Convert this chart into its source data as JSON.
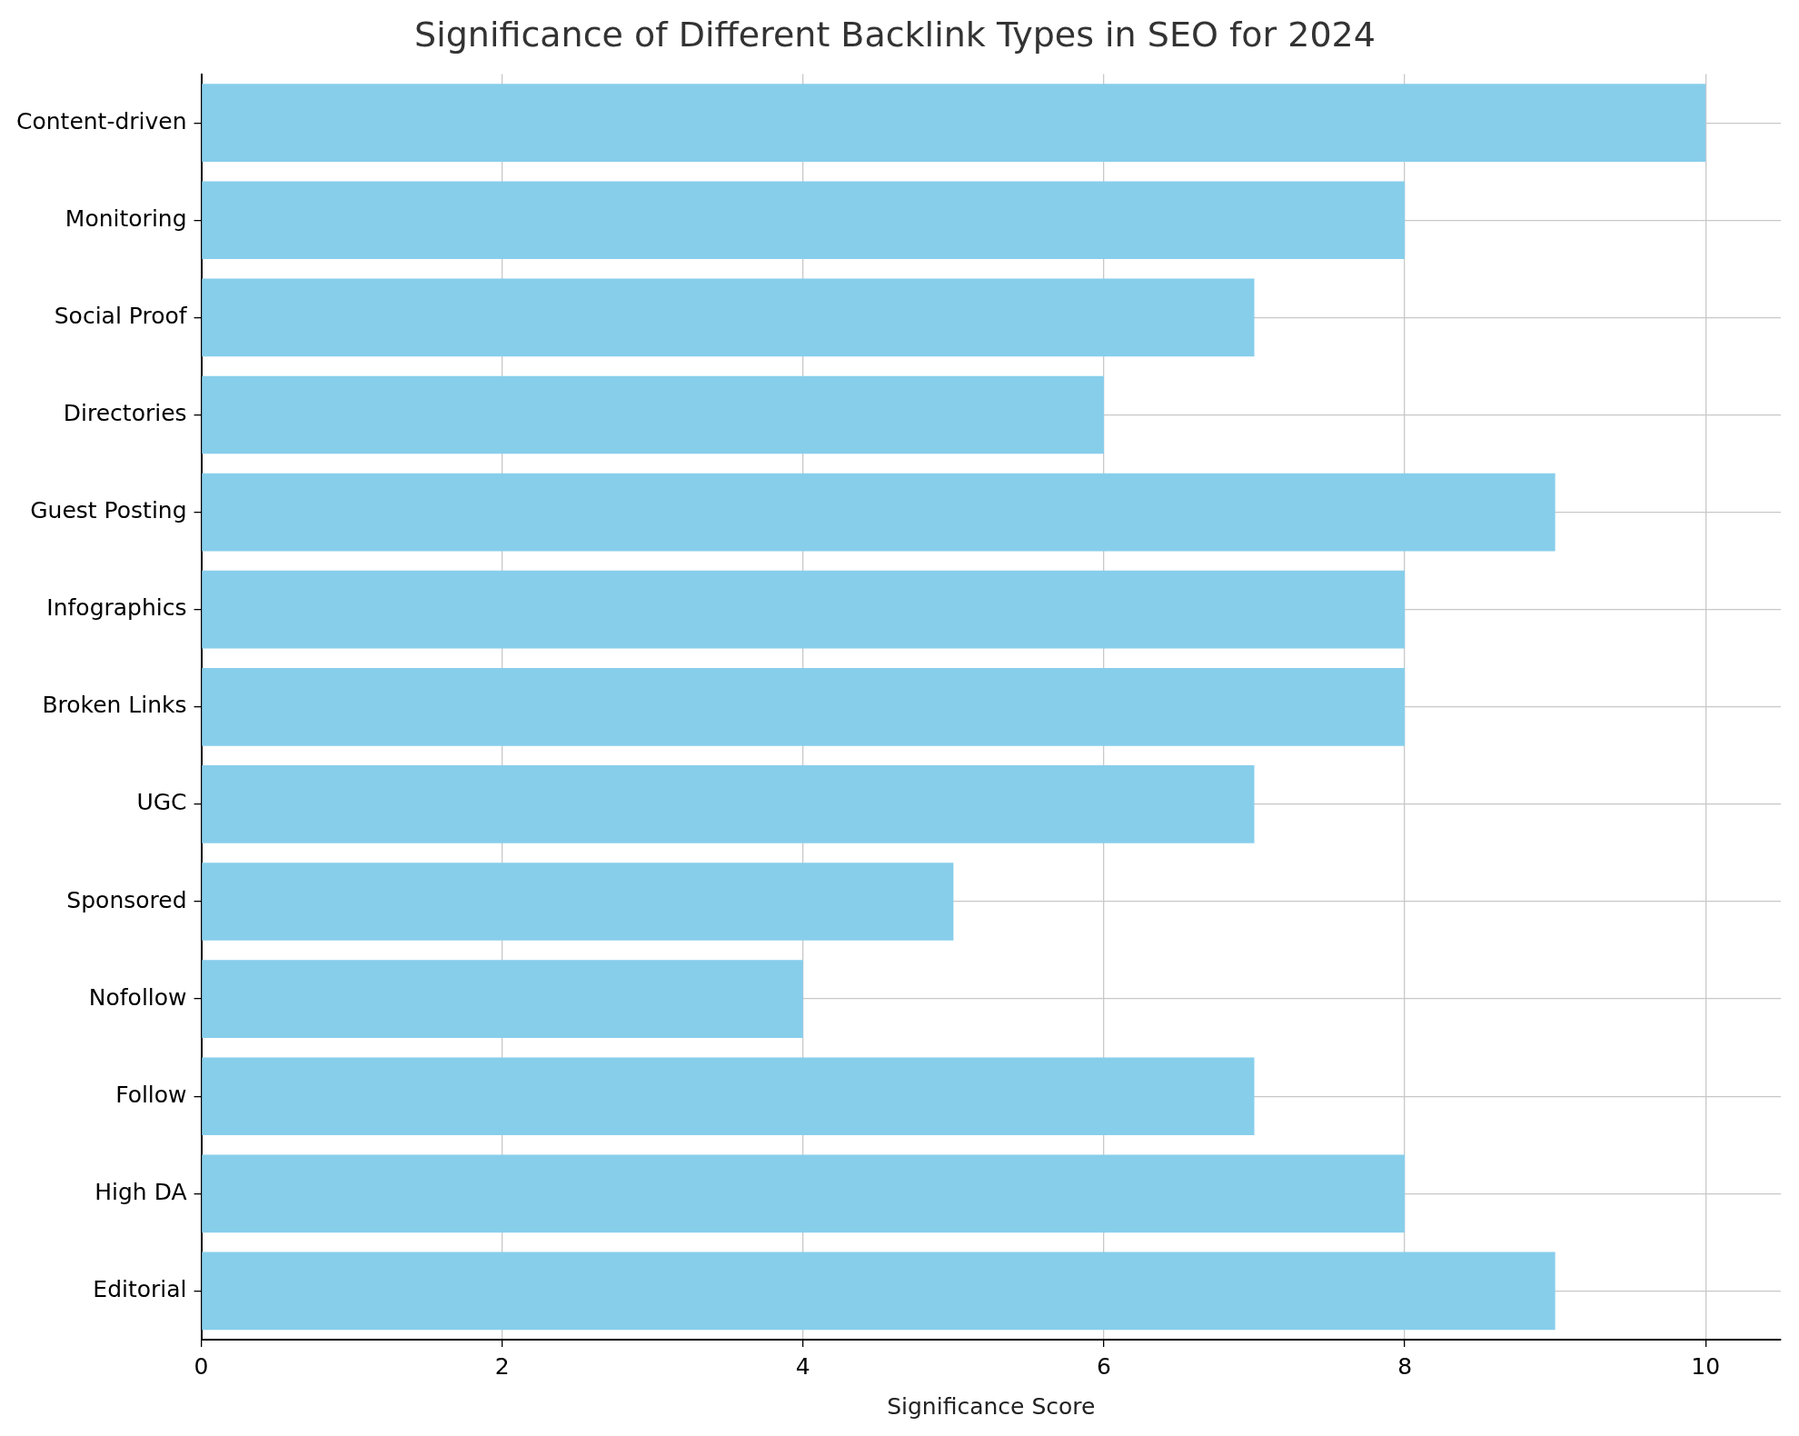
{
  "chart_data": {
    "type": "bar",
    "orientation": "horizontal",
    "title": "Significance of Different Backlink Types in SEO for 2024",
    "xlabel": "Significance Score",
    "categories": [
      "Content-driven",
      "Monitoring",
      "Social Proof",
      "Directories",
      "Guest Posting",
      "Infographics",
      "Broken Links",
      "UGC",
      "Sponsored",
      "Nofollow",
      "Follow",
      "High DA",
      "Editorial"
    ],
    "values": [
      10,
      8,
      7,
      6,
      9,
      8,
      8,
      7,
      5,
      4,
      7,
      8,
      9
    ],
    "color": "#87ceeb",
    "xlim": [
      0,
      10.5
    ],
    "xticks": [
      0,
      2,
      4,
      6,
      8,
      10
    ],
    "grid": true,
    "legend": false
  }
}
